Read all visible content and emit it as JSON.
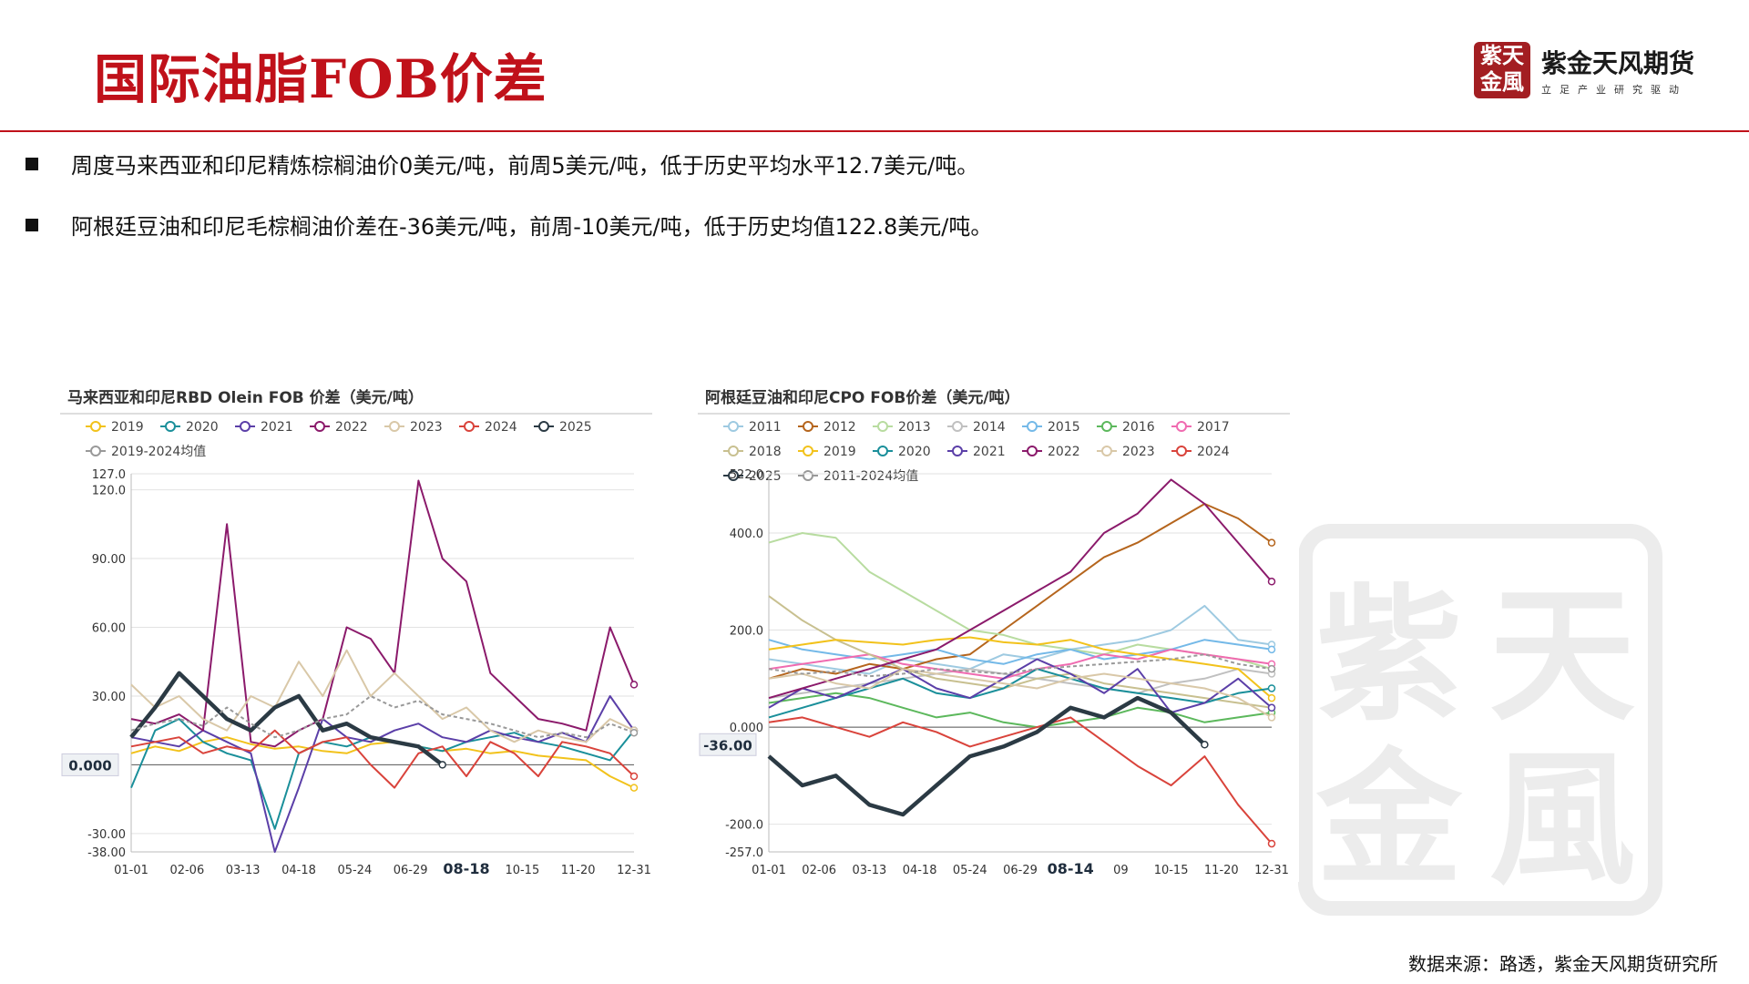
{
  "page": {
    "title": "国际油脂FOB价差",
    "logo": {
      "seal_chars": [
        "紫",
        "天",
        "金",
        "風"
      ],
      "name": "紫金天风期货",
      "slogan": "立足产业研究驱动"
    },
    "bullets": [
      "周度马来西亚和印尼精炼棕榈油价0美元/吨，前周5美元/吨，低于历史平均水平12.7美元/吨。",
      "阿根廷豆油和印尼毛棕榈油价差在-36美元/吨，前周-10美元/吨，低于历史均值122.8美元/吨。"
    ],
    "source": "数据来源：路透，紫金天风期货研究所",
    "watermark": {
      "chars": [
        "紫",
        "天",
        "金",
        "風"
      ]
    }
  },
  "colors": {
    "accent_red": "#c0111a",
    "series": {
      "2011": "#9ecae1",
      "2012": "#b5651d",
      "2013": "#b8dca0",
      "2014": "#c0c0c0",
      "2015": "#74b9e8",
      "2016": "#5cb85c",
      "2017": "#f06bb0",
      "2018": "#c8c090",
      "2019": "#f2c21b",
      "2020": "#1a8f9a",
      "2021": "#5b3fa8",
      "2022": "#8b1a6b",
      "2023": "#d9c8a8",
      "2024": "#d9433b",
      "2025": "#2b3a44",
      "avg": "#999999"
    }
  },
  "chart_data": [
    {
      "type": "line",
      "title": "马来西亚和印尼RBD Olein FOB 价差（美元/吨）",
      "x_ticks": [
        "01-01",
        "02-06",
        "03-13",
        "04-18",
        "05-24",
        "06-29",
        "08-18",
        "10-15",
        "11-20",
        "12-31"
      ],
      "highlight_tick": "08-18",
      "y_ticks": [
        127.0,
        120.0,
        90.0,
        60.0,
        30.0,
        -30.0,
        -38.0
      ],
      "y_tick_labels": [
        "127.0",
        "120.0",
        "90.00",
        "60.00",
        "30.00",
        "-30.00",
        "-38.00"
      ],
      "ylim": [
        -38,
        127
      ],
      "current_value_label": "0.000",
      "current_value": 0,
      "legend": [
        "2019",
        "2020",
        "2021",
        "2022",
        "2023",
        "2024",
        "2025",
        "2019-2024均值"
      ],
      "series": [
        {
          "name": "2019",
          "key": "2019",
          "values": [
            5,
            8,
            6,
            10,
            12,
            9,
            7,
            8,
            6,
            5,
            9,
            10,
            8,
            6,
            7,
            5,
            6,
            4,
            3,
            2,
            -5,
            -10
          ]
        },
        {
          "name": "2020",
          "key": "2020",
          "values": [
            -10,
            15,
            20,
            10,
            5,
            2,
            -28,
            5,
            10,
            8,
            12,
            10,
            8,
            6,
            10,
            12,
            14,
            10,
            8,
            5,
            2,
            15
          ]
        },
        {
          "name": "2021",
          "key": "2021",
          "values": [
            12,
            10,
            8,
            15,
            10,
            5,
            -38,
            -10,
            20,
            12,
            10,
            15,
            18,
            12,
            10,
            15,
            12,
            10,
            14,
            10,
            30,
            15
          ]
        },
        {
          "name": "2022",
          "key": "2022",
          "values": [
            20,
            18,
            22,
            15,
            105,
            10,
            8,
            15,
            20,
            60,
            55,
            40,
            124,
            90,
            80,
            40,
            30,
            20,
            18,
            15,
            60,
            35
          ]
        },
        {
          "name": "2023",
          "key": "2023",
          "values": [
            35,
            25,
            30,
            20,
            15,
            30,
            25,
            45,
            30,
            50,
            30,
            40,
            30,
            20,
            25,
            15,
            10,
            15,
            12,
            10,
            20,
            15
          ]
        },
        {
          "name": "2024",
          "key": "2024",
          "values": [
            8,
            10,
            12,
            5,
            8,
            6,
            15,
            5,
            10,
            12,
            0,
            -10,
            5,
            8,
            -5,
            10,
            5,
            -5,
            10,
            8,
            5,
            -5
          ]
        },
        {
          "name": "2025",
          "key": "2025",
          "values": [
            12,
            25,
            40,
            30,
            20,
            15,
            25,
            30,
            15,
            18,
            12,
            10,
            8,
            0
          ]
        },
        {
          "name": "2019-2024均值",
          "key": "avg",
          "values": [
            15,
            18,
            20,
            17,
            25,
            18,
            12,
            15,
            20,
            22,
            30,
            25,
            28,
            22,
            20,
            18,
            15,
            12,
            14,
            12,
            18,
            14
          ]
        }
      ]
    },
    {
      "type": "line",
      "title": "阿根廷豆油和印尼CPO FOB价差（美元/吨）",
      "x_ticks": [
        "01-01",
        "02-06",
        "03-13",
        "04-18",
        "05-24",
        "06-29",
        "08-14",
        "09",
        "10-15",
        "11-20",
        "12-31"
      ],
      "highlight_tick": "08-14",
      "y_ticks": [
        522.0,
        400.0,
        200.0,
        0.0,
        -200.0,
        -257.0
      ],
      "y_tick_labels": [
        "522.0",
        "400.0",
        "200.0",
        "0.000",
        "-200.0",
        "-257.0"
      ],
      "ylim": [
        -257,
        522
      ],
      "current_value_label": "-36.00",
      "current_value": -36,
      "legend": [
        "2011",
        "2012",
        "2013",
        "2014",
        "2015",
        "2016",
        "2017",
        "2018",
        "2019",
        "2020",
        "2021",
        "2022",
        "2023",
        "2024",
        "2025",
        "2011-2024均值"
      ],
      "series": [
        {
          "name": "2011",
          "key": "2011",
          "values": [
            140,
            130,
            120,
            110,
            140,
            130,
            120,
            150,
            140,
            160,
            170,
            180,
            200,
            250,
            180,
            170
          ]
        },
        {
          "name": "2012",
          "key": "2012",
          "values": [
            100,
            120,
            110,
            130,
            120,
            140,
            150,
            200,
            250,
            300,
            350,
            380,
            420,
            460,
            430,
            380
          ]
        },
        {
          "name": "2013",
          "key": "2013",
          "values": [
            380,
            400,
            390,
            320,
            280,
            240,
            200,
            190,
            170,
            160,
            150,
            170,
            160,
            150,
            140,
            120
          ]
        },
        {
          "name": "2014",
          "key": "2014",
          "values": [
            60,
            70,
            80,
            90,
            100,
            110,
            120,
            110,
            100,
            90,
            80,
            70,
            90,
            100,
            120,
            110
          ]
        },
        {
          "name": "2015",
          "key": "2015",
          "values": [
            180,
            160,
            150,
            140,
            150,
            160,
            140,
            130,
            150,
            160,
            140,
            150,
            160,
            180,
            170,
            160
          ]
        },
        {
          "name": "2016",
          "key": "2016",
          "values": [
            50,
            60,
            70,
            60,
            40,
            20,
            30,
            10,
            0,
            10,
            20,
            40,
            30,
            10,
            20,
            30
          ]
        },
        {
          "name": "2017",
          "key": "2017",
          "values": [
            120,
            130,
            140,
            150,
            130,
            120,
            110,
            100,
            120,
            130,
            150,
            140,
            160,
            150,
            140,
            130
          ]
        },
        {
          "name": "2018",
          "key": "2018",
          "values": [
            270,
            220,
            180,
            150,
            120,
            100,
            90,
            80,
            100,
            110,
            90,
            80,
            70,
            60,
            50,
            40
          ]
        },
        {
          "name": "2019",
          "key": "2019",
          "values": [
            160,
            170,
            180,
            175,
            170,
            180,
            185,
            175,
            170,
            180,
            160,
            150,
            140,
            130,
            120,
            60
          ]
        },
        {
          "name": "2020",
          "key": "2020",
          "values": [
            20,
            40,
            60,
            80,
            100,
            70,
            60,
            80,
            120,
            100,
            80,
            70,
            60,
            50,
            70,
            80
          ]
        },
        {
          "name": "2021",
          "key": "2021",
          "values": [
            40,
            80,
            60,
            90,
            120,
            80,
            60,
            100,
            140,
            110,
            70,
            120,
            30,
            50,
            100,
            40
          ]
        },
        {
          "name": "2022",
          "key": "2022",
          "values": [
            60,
            80,
            100,
            120,
            140,
            160,
            200,
            240,
            280,
            320,
            400,
            440,
            510,
            460,
            380,
            300
          ]
        },
        {
          "name": "2023",
          "key": "2023",
          "values": [
            100,
            110,
            90,
            80,
            120,
            110,
            100,
            90,
            80,
            100,
            110,
            100,
            90,
            80,
            60,
            20
          ]
        },
        {
          "name": "2024",
          "key": "2024",
          "values": [
            10,
            20,
            0,
            -20,
            10,
            -10,
            -40,
            -20,
            0,
            20,
            -30,
            -80,
            -120,
            -60,
            -160,
            -240
          ]
        },
        {
          "name": "2025",
          "key": "2025",
          "values": [
            -60,
            -120,
            -100,
            -160,
            -180,
            -120,
            -60,
            -40,
            -10,
            40,
            20,
            60,
            30,
            -36
          ]
        },
        {
          "name": "2011-2024均值",
          "key": "avg",
          "values": [
            120,
            110,
            115,
            105,
            110,
            120,
            115,
            110,
            120,
            125,
            130,
            135,
            140,
            150,
            130,
            120
          ]
        }
      ]
    }
  ]
}
